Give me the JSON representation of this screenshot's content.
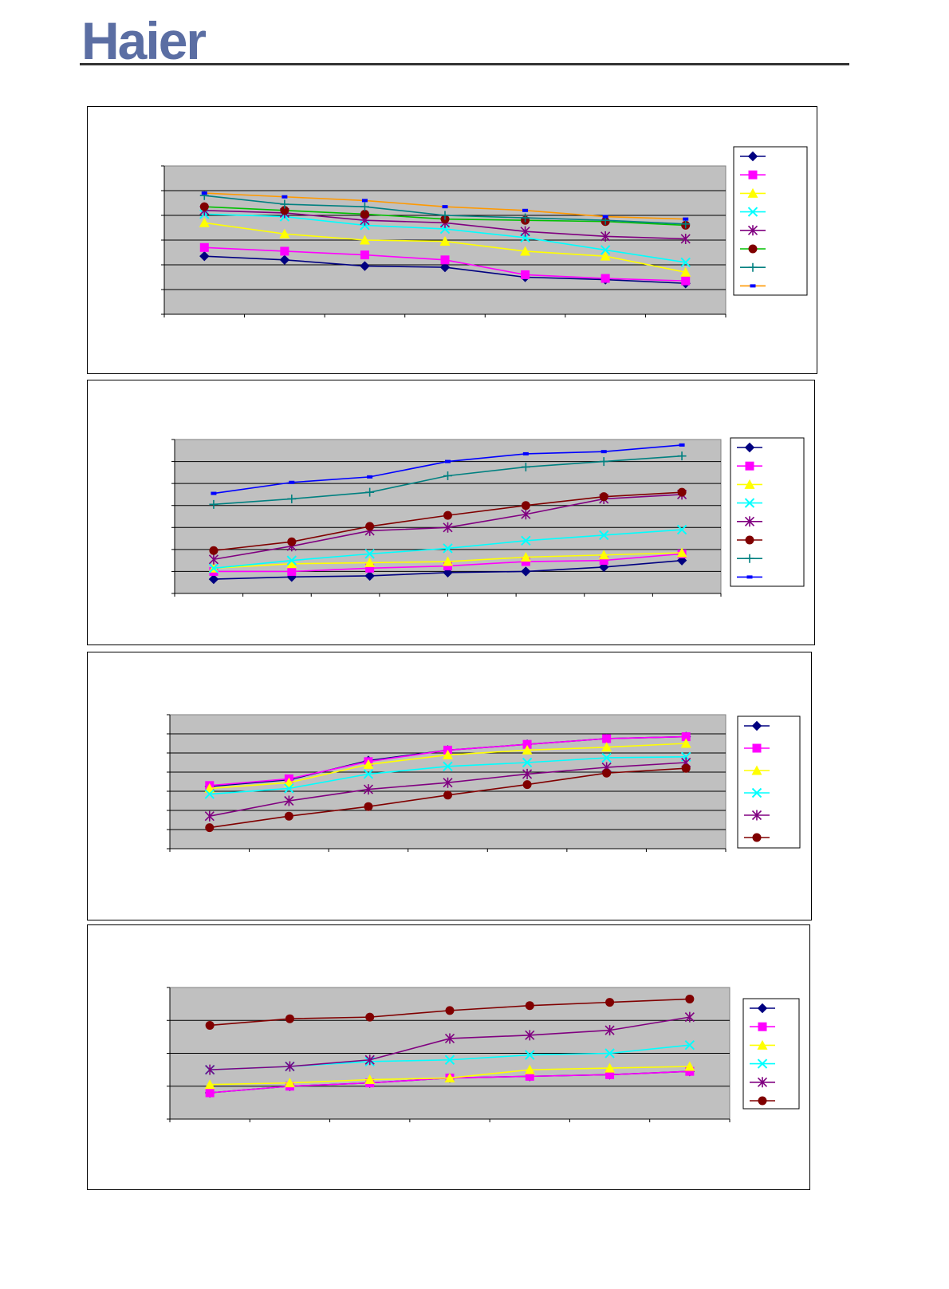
{
  "brand": {
    "logo_text": "Haier",
    "logo_color": "#5b6ea3",
    "rule_color": "#333333"
  },
  "plot_style": {
    "plot_background": "#c0c0c0",
    "gridline_color": "#000000"
  },
  "series_styles": [
    {
      "color": "#000080",
      "marker": "diamond"
    },
    {
      "color": "#ff00ff",
      "marker": "square"
    },
    {
      "color": "#ffff00",
      "marker": "triangle"
    },
    {
      "color": "#00ffff",
      "marker": "x"
    },
    {
      "color": "#800080",
      "marker": "asterisk"
    },
    {
      "color": "#800000",
      "marker": "circle"
    },
    {
      "color": "#008080",
      "marker": "plus"
    },
    {
      "color": "#0000ff",
      "marker": "dash"
    }
  ],
  "chart_data": [
    {
      "type": "line",
      "title": "",
      "xlabel": "",
      "ylabel": "",
      "categories": [
        "",
        "",
        "",
        "",
        "",
        "",
        ""
      ],
      "ylim": [
        0,
        6
      ],
      "grid": true,
      "legend": "right",
      "series": [
        {
          "values": [
            2.35,
            2.2,
            1.95,
            1.9,
            1.5,
            1.4,
            1.25
          ],
          "color": "#000080",
          "marker": "diamond"
        },
        {
          "values": [
            2.7,
            2.55,
            2.4,
            2.2,
            1.6,
            1.45,
            1.35
          ],
          "color": "#ff00ff",
          "marker": "square"
        },
        {
          "values": [
            3.7,
            3.25,
            3.0,
            2.95,
            2.55,
            2.35,
            1.7
          ],
          "color": "#ffff00",
          "marker": "triangle"
        },
        {
          "values": [
            4.05,
            3.95,
            3.6,
            3.45,
            3.1,
            2.6,
            2.1
          ],
          "color": "#00ffff",
          "marker": "x"
        },
        {
          "values": [
            4.2,
            4.1,
            3.8,
            3.7,
            3.35,
            3.15,
            3.05
          ],
          "color": "#800080",
          "marker": "asterisk"
        },
        {
          "values": [
            4.35,
            4.2,
            4.05,
            3.85,
            3.8,
            3.75,
            3.6
          ],
          "color": "#800000",
          "marker": "circle",
          "line_color": "#00c000"
        },
        {
          "values": [
            4.8,
            4.45,
            4.35,
            4.0,
            3.9,
            3.8,
            3.65
          ],
          "color": "#008080",
          "marker": "plus"
        },
        {
          "values": [
            4.9,
            4.75,
            4.6,
            4.35,
            4.2,
            3.95,
            3.85
          ],
          "color": "#ff9900",
          "marker": "dash",
          "marker_color": "#0000ff"
        }
      ]
    },
    {
      "type": "line",
      "title": "",
      "xlabel": "",
      "ylabel": "",
      "categories": [
        "",
        "",
        "",
        "",
        "",
        "",
        ""
      ],
      "ylim": [
        0,
        7
      ],
      "grid": true,
      "legend": "right",
      "series": [
        {
          "values": [
            0.65,
            0.75,
            0.8,
            0.95,
            1.0,
            1.2,
            1.5
          ],
          "color": "#000080",
          "marker": "diamond"
        },
        {
          "values": [
            1.0,
            1.0,
            1.15,
            1.25,
            1.45,
            1.5,
            1.8
          ],
          "color": "#ff00ff",
          "marker": "square"
        },
        {
          "values": [
            1.15,
            1.35,
            1.4,
            1.45,
            1.65,
            1.75,
            1.85
          ],
          "color": "#ffff00",
          "marker": "triangle"
        },
        {
          "values": [
            1.15,
            1.5,
            1.8,
            2.05,
            2.4,
            2.65,
            2.9
          ],
          "color": "#00ffff",
          "marker": "x"
        },
        {
          "values": [
            1.55,
            2.15,
            2.85,
            3.0,
            3.6,
            4.3,
            4.5
          ],
          "color": "#800080",
          "marker": "asterisk"
        },
        {
          "values": [
            1.95,
            2.35,
            3.05,
            3.55,
            4.0,
            4.4,
            4.6
          ],
          "color": "#800000",
          "marker": "circle"
        },
        {
          "values": [
            4.05,
            4.3,
            4.6,
            5.35,
            5.75,
            6.0,
            6.25
          ],
          "color": "#008080",
          "marker": "plus"
        },
        {
          "values": [
            4.55,
            5.05,
            5.3,
            6.0,
            6.35,
            6.45,
            6.75
          ],
          "color": "#0000ff",
          "marker": "dash"
        }
      ]
    },
    {
      "type": "line",
      "title": "",
      "xlabel": "",
      "ylabel": "",
      "categories": [
        "",
        "",
        "",
        "",
        "",
        "",
        ""
      ],
      "ylim": [
        0,
        7
      ],
      "grid": true,
      "legend": "right",
      "series": [
        {
          "values": [
            3.25,
            3.6,
            4.6,
            5.15,
            5.45,
            5.75,
            5.85
          ],
          "color": "#000080",
          "marker": "diamond"
        },
        {
          "values": [
            3.3,
            3.65,
            4.55,
            5.15,
            5.45,
            5.75,
            5.85
          ],
          "color": "#ff00ff",
          "marker": "square"
        },
        {
          "values": [
            3.15,
            3.45,
            4.4,
            4.9,
            5.15,
            5.3,
            5.5
          ],
          "color": "#ffff00",
          "marker": "triangle"
        },
        {
          "values": [
            2.85,
            3.15,
            3.9,
            4.3,
            4.5,
            4.75,
            4.8
          ],
          "color": "#00ffff",
          "marker": "x"
        },
        {
          "values": [
            1.7,
            2.5,
            3.1,
            3.45,
            3.9,
            4.25,
            4.5
          ],
          "color": "#800080",
          "marker": "asterisk"
        },
        {
          "values": [
            1.1,
            1.7,
            2.2,
            2.8,
            3.35,
            3.95,
            4.2
          ],
          "color": "#800000",
          "marker": "circle"
        }
      ]
    },
    {
      "type": "line",
      "title": "",
      "xlabel": "",
      "ylabel": "",
      "categories": [
        "",
        "",
        "",
        "",
        "",
        "",
        ""
      ],
      "ylim": [
        0,
        4
      ],
      "grid": true,
      "legend": "right",
      "series": [
        {
          "values": [
            0.8,
            1.0,
            1.1,
            1.25,
            1.3,
            1.35,
            1.45
          ],
          "color": "#000080",
          "marker": "diamond"
        },
        {
          "values": [
            0.8,
            1.0,
            1.1,
            1.25,
            1.3,
            1.35,
            1.45
          ],
          "color": "#ff00ff",
          "marker": "square"
        },
        {
          "values": [
            1.05,
            1.1,
            1.2,
            1.25,
            1.5,
            1.55,
            1.6
          ],
          "color": "#ffff00",
          "marker": "triangle"
        },
        {
          "values": [
            1.5,
            1.6,
            1.75,
            1.8,
            1.95,
            2.0,
            2.25
          ],
          "color": "#00ffff",
          "marker": "x"
        },
        {
          "values": [
            1.5,
            1.6,
            1.8,
            2.45,
            2.55,
            2.7,
            3.1
          ],
          "color": "#800080",
          "marker": "asterisk"
        },
        {
          "values": [
            2.85,
            3.05,
            3.1,
            3.3,
            3.45,
            3.55,
            3.65
          ],
          "color": "#800000",
          "marker": "circle"
        }
      ]
    }
  ]
}
